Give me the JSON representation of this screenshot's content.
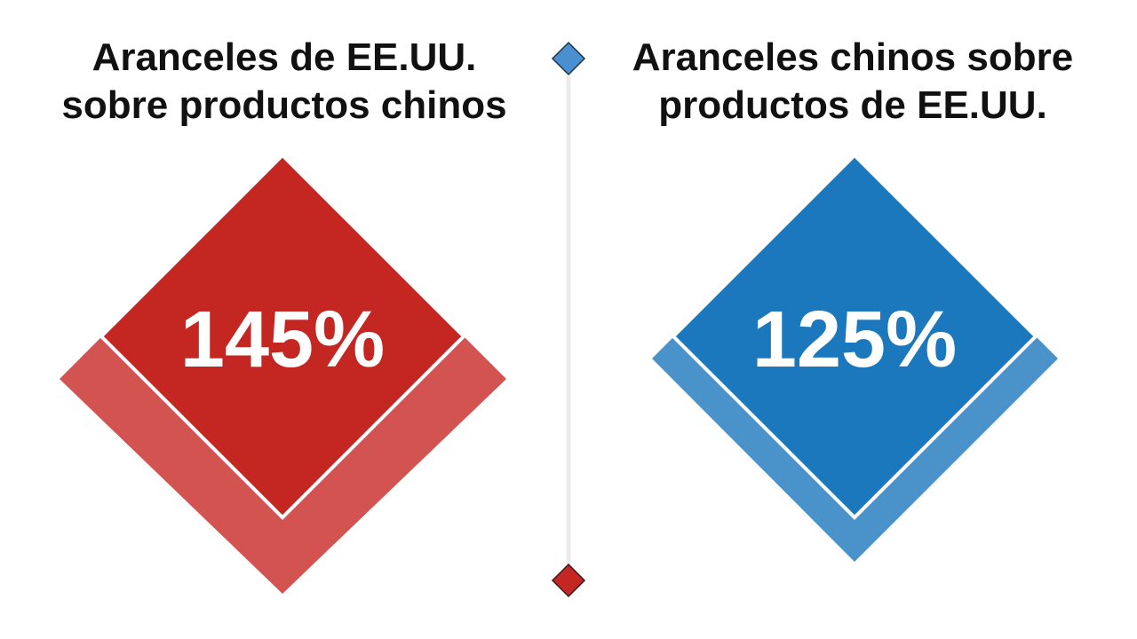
{
  "chart_data": {
    "type": "diamond-comparison",
    "unit": "%",
    "panels": [
      {
        "title_lines": [
          "Aranceles de EE.UU.",
          "sobre productos chinos"
        ],
        "value": 145,
        "value_label": "145%",
        "color": "#C42622",
        "color_light": "#D35350"
      },
      {
        "title_lines": [
          "Aranceles chinos sobre",
          "productos de EE.UU."
        ],
        "value": 125,
        "value_label": "125%",
        "color": "#1C78BC",
        "color_light": "#4A92CA"
      }
    ],
    "divider": {
      "top_marker_color": "#4A90D0",
      "bottom_marker_color": "#C42622",
      "line_color": "#EBEBEB"
    }
  }
}
